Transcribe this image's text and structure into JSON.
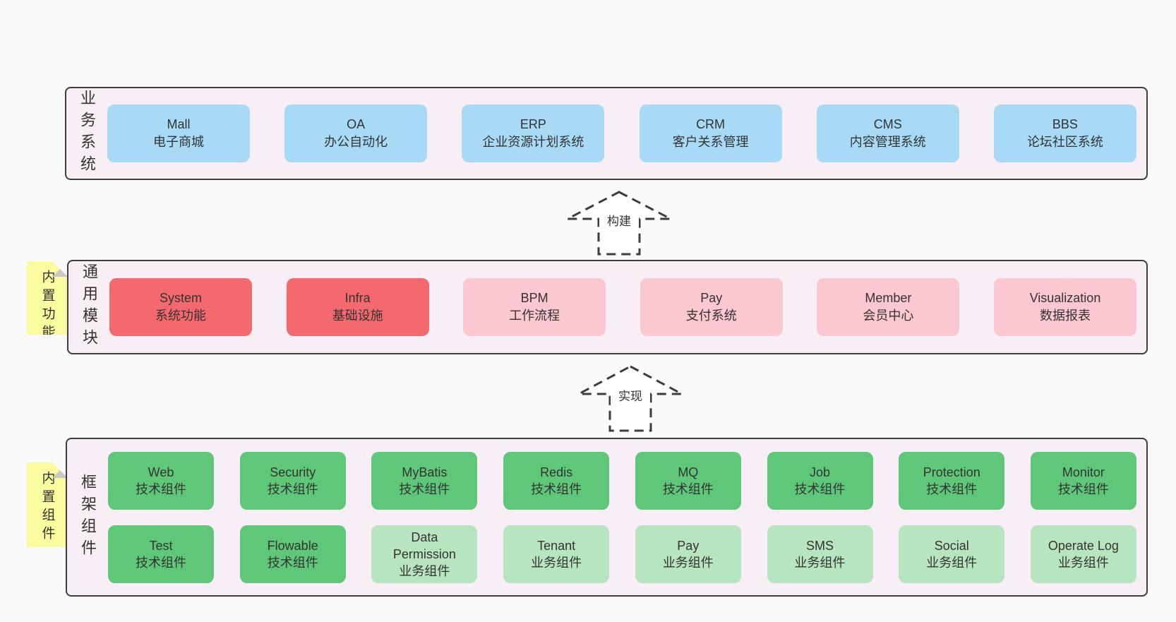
{
  "colors": {
    "page_bg": "#fafafa",
    "band_bg": "#f8eef6",
    "band_border": "#3d3d3d",
    "blue": "#a9daf5",
    "red": "#f4696e",
    "pink": "#fbc7d1",
    "green": "#5fc878",
    "light_green": "#b7e5bf",
    "sticky_yellow": "#fafa9e",
    "sticky_fold": "#c8c8c8",
    "text": "#333333"
  },
  "bands": [
    {
      "id": "business-systems",
      "side_label": "业务系统",
      "sticky": null,
      "rows": [
        [
          {
            "title": "Mall",
            "subtitle": "电子商城",
            "variant": "blue"
          },
          {
            "title": "OA",
            "subtitle": "办公自动化",
            "variant": "blue"
          },
          {
            "title": "ERP",
            "subtitle": "企业资源计划系统",
            "variant": "blue"
          },
          {
            "title": "CRM",
            "subtitle": "客户关系管理",
            "variant": "blue"
          },
          {
            "title": "CMS",
            "subtitle": "内容管理系统",
            "variant": "blue"
          },
          {
            "title": "BBS",
            "subtitle": "论坛社区系统",
            "variant": "blue"
          }
        ]
      ]
    },
    {
      "id": "common-modules",
      "side_label": "通用模块",
      "sticky": "内置功能",
      "rows": [
        [
          {
            "title": "System",
            "subtitle": "系统功能",
            "variant": "red"
          },
          {
            "title": "Infra",
            "subtitle": "基础设施",
            "variant": "red"
          },
          {
            "title": "BPM",
            "subtitle": "工作流程",
            "variant": "pink"
          },
          {
            "title": "Pay",
            "subtitle": "支付系统",
            "variant": "pink"
          },
          {
            "title": "Member",
            "subtitle": "会员中心",
            "variant": "pink"
          },
          {
            "title": "Visualization",
            "subtitle": "数据报表",
            "variant": "pink"
          }
        ]
      ]
    },
    {
      "id": "framework-components",
      "side_label": "框架组件",
      "sticky": "内置组件",
      "rows": [
        [
          {
            "title": "Web",
            "subtitle": "技术组件",
            "variant": "green"
          },
          {
            "title": "Security",
            "subtitle": "技术组件",
            "variant": "green"
          },
          {
            "title": "MyBatis",
            "subtitle": "技术组件",
            "variant": "green"
          },
          {
            "title": "Redis",
            "subtitle": "技术组件",
            "variant": "green"
          },
          {
            "title": "MQ",
            "subtitle": "技术组件",
            "variant": "green"
          },
          {
            "title": "Job",
            "subtitle": "技术组件",
            "variant": "green"
          },
          {
            "title": "Protection",
            "subtitle": "技术组件",
            "variant": "green"
          },
          {
            "title": "Monitor",
            "subtitle": "技术组件",
            "variant": "green"
          }
        ],
        [
          {
            "title": "Test",
            "subtitle": "技术组件",
            "variant": "green"
          },
          {
            "title": "Flowable",
            "subtitle": "技术组件",
            "variant": "green"
          },
          {
            "title": "Data Permission",
            "subtitle": "业务组件",
            "variant": "lightgreen"
          },
          {
            "title": "Tenant",
            "subtitle": "业务组件",
            "variant": "lightgreen"
          },
          {
            "title": "Pay",
            "subtitle": "业务组件",
            "variant": "lightgreen"
          },
          {
            "title": "SMS",
            "subtitle": "业务组件",
            "variant": "lightgreen"
          },
          {
            "title": "Social",
            "subtitle": "业务组件",
            "variant": "lightgreen"
          },
          {
            "title": "Operate Log",
            "subtitle": "业务组件",
            "variant": "lightgreen"
          }
        ]
      ]
    }
  ],
  "arrows": [
    {
      "label": "构建"
    },
    {
      "label": "实现"
    }
  ]
}
